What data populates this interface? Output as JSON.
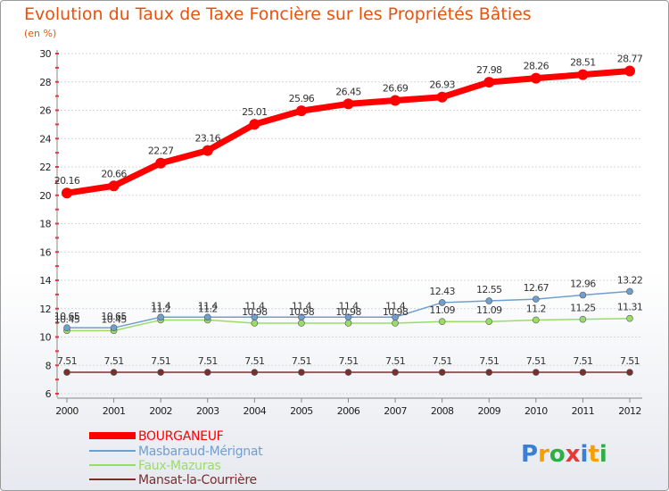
{
  "chart_data": {
    "type": "line",
    "title": "Evolution du Taux de Taxe Foncière sur les Propriétés Bâties",
    "subtitle": "(en %)",
    "x": [
      "2000",
      "2001",
      "2002",
      "2003",
      "2004",
      "2005",
      "2006",
      "2007",
      "2008",
      "2009",
      "2010",
      "2011",
      "2012"
    ],
    "ylim": [
      6,
      30
    ],
    "yticks": [
      "6",
      "8",
      "10",
      "12",
      "14",
      "16",
      "18",
      "20",
      "22",
      "24",
      "26",
      "28",
      "30"
    ],
    "grid": "horizontal",
    "legend_position": "bottom-left",
    "series": [
      {
        "name": "BOURGANEUF",
        "color": "#ff0000",
        "values": [
          20.16,
          20.66,
          22.27,
          23.16,
          25.01,
          25.96,
          26.45,
          26.69,
          26.93,
          27.98,
          28.26,
          28.51,
          28.77
        ],
        "labels": [
          "20.16",
          "20.66",
          "22.27",
          "23.16",
          "25.01",
          "25.96",
          "26.45",
          "26.69",
          "26.93",
          "27.98",
          "28.26",
          "28.51",
          "28.77"
        ]
      },
      {
        "name": "Masbaraud-Mérignat",
        "color": "#6f9fcf",
        "values": [
          10.65,
          10.65,
          11.4,
          11.4,
          11.4,
          11.4,
          11.4,
          11.4,
          12.43,
          12.55,
          12.67,
          12.96,
          13.22
        ],
        "labels": [
          "10.65",
          "10.65",
          "11.4",
          "11.4",
          "11.4",
          "11.4",
          "11.4",
          "11.4",
          "12.43",
          "12.55",
          "12.67",
          "12.96",
          "13.22"
        ]
      },
      {
        "name": "Faux-Mazuras",
        "color": "#99dd66",
        "values": [
          10.45,
          10.45,
          11.2,
          11.2,
          10.98,
          10.98,
          10.98,
          10.98,
          11.09,
          11.09,
          11.2,
          11.25,
          11.31
        ],
        "labels": [
          "10.45",
          "10.45",
          "11.2",
          "11.2",
          "10.98",
          "10.98",
          "10.98",
          "10.98",
          "11.09",
          "11.09",
          "11.2",
          "11.25",
          "11.31"
        ]
      },
      {
        "name": "Mansat-la-Courrière",
        "color": "#7a2e2e",
        "values": [
          7.51,
          7.51,
          7.51,
          7.51,
          7.51,
          7.51,
          7.51,
          7.51,
          7.51,
          7.51,
          7.51,
          7.51,
          7.51
        ],
        "labels": [
          "7.51",
          "7.51",
          "7.51",
          "7.51",
          "7.51",
          "7.51",
          "7.51",
          "7.51",
          "7.51",
          "7.51",
          "7.51",
          "7.51",
          "7.51"
        ]
      }
    ]
  },
  "logo": {
    "text": "Proxiti",
    "colors": [
      "#3b7fd4",
      "#f5a000",
      "#2fae44",
      "#e53935",
      "#3b7fd4",
      "#f5a000",
      "#2fae44"
    ]
  }
}
